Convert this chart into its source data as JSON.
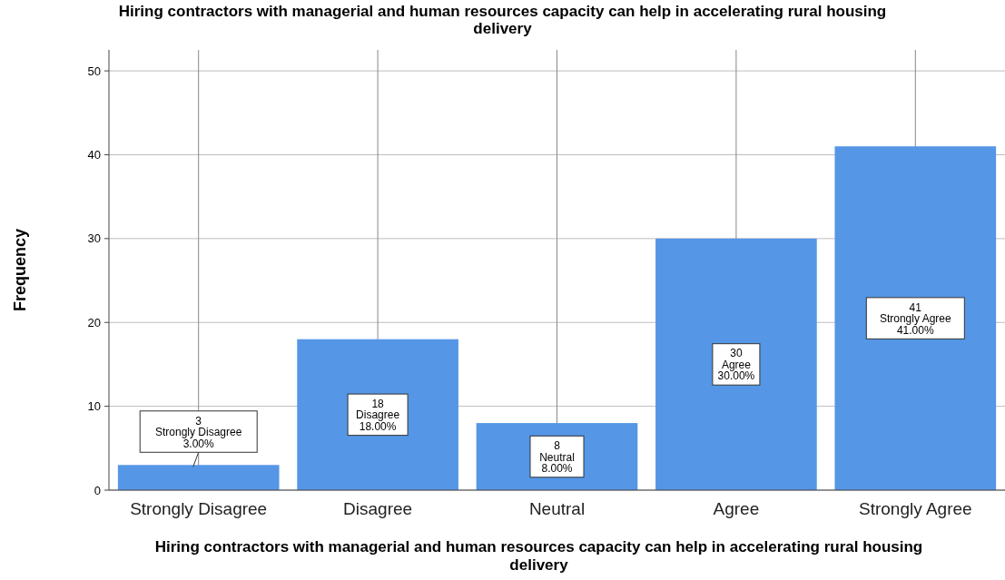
{
  "chart_data": {
    "type": "bar",
    "title": "Hiring contractors with managerial and human resources capacity can help in accelerating rural housing delivery",
    "xlabel": "Hiring contractors with managerial and human resources capacity can help in accelerating rural housing delivery",
    "ylabel": "Frequency",
    "categories": [
      "Strongly Disagree",
      "Disagree",
      "Neutral",
      "Agree",
      "Strongly Agree"
    ],
    "values": [
      3,
      18,
      8,
      30,
      41
    ],
    "color": "#5596e6",
    "value_labels": [
      "3\nStrongly Disagree\n3.00%",
      "18\nDisagree\n18.00%",
      "8\nNeutral\n8.00%",
      "30\nAgree\n30.00%",
      "41\nStrongly Agree\n41.00%"
    ],
    "ylim": [
      0,
      52.5
    ],
    "yticks": [
      0,
      10,
      20,
      30,
      40,
      50
    ],
    "grid": true
  }
}
